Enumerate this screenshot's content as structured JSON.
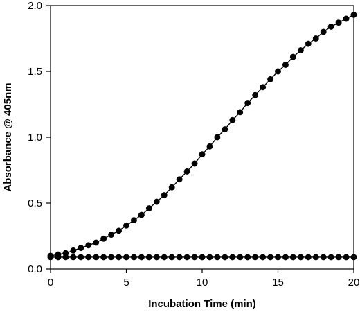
{
  "chart_data": {
    "type": "line",
    "xlabel": "Incubation Time (min)",
    "ylabel": "Absorbance @ 405nm",
    "xlim": [
      0,
      20
    ],
    "ylim": [
      0.0,
      2.0
    ],
    "x_ticks": [
      0,
      5,
      10,
      15,
      20
    ],
    "y_ticks": [
      0.0,
      0.5,
      1.0,
      1.5,
      2.0
    ],
    "x_tick_labels": [
      "0",
      "5",
      "10",
      "15",
      "20"
    ],
    "y_tick_labels": [
      "0.0",
      "0.5",
      "1.0",
      "1.5",
      "2.0"
    ],
    "grid": false,
    "legend": "none",
    "marker": "filled-circle",
    "line_color": "#000000",
    "series": [
      {
        "x": [
          0,
          0.5,
          1,
          1.5,
          2,
          2.5,
          3,
          3.5,
          4,
          4.5,
          5,
          5.5,
          6,
          6.5,
          7,
          7.5,
          8,
          8.5,
          9,
          9.5,
          10,
          10.5,
          11,
          11.5,
          12,
          12.5,
          13,
          13.5,
          14,
          14.5,
          15,
          15.5,
          16,
          16.5,
          17,
          17.5,
          18,
          18.5,
          19,
          19.5,
          20
        ],
        "values": [
          0.1,
          0.11,
          0.12,
          0.14,
          0.16,
          0.18,
          0.2,
          0.23,
          0.26,
          0.29,
          0.33,
          0.37,
          0.41,
          0.46,
          0.51,
          0.56,
          0.62,
          0.68,
          0.74,
          0.8,
          0.87,
          0.93,
          1.0,
          1.06,
          1.13,
          1.19,
          1.26,
          1.32,
          1.38,
          1.44,
          1.5,
          1.55,
          1.61,
          1.66,
          1.71,
          1.75,
          1.8,
          1.84,
          1.87,
          1.9,
          1.93
        ]
      },
      {
        "x": [
          0,
          0.5,
          1,
          1.5,
          2,
          2.5,
          3,
          3.5,
          4,
          4.5,
          5,
          5.5,
          6,
          6.5,
          7,
          7.5,
          8,
          8.5,
          9,
          9.5,
          10,
          10.5,
          11,
          11.5,
          12,
          12.5,
          13,
          13.5,
          14,
          14.5,
          15,
          15.5,
          16,
          16.5,
          17,
          17.5,
          18,
          18.5,
          19,
          19.5,
          20
        ],
        "values": [
          0.09,
          0.09,
          0.09,
          0.09,
          0.09,
          0.09,
          0.09,
          0.09,
          0.09,
          0.09,
          0.09,
          0.09,
          0.09,
          0.09,
          0.09,
          0.09,
          0.09,
          0.09,
          0.09,
          0.09,
          0.09,
          0.09,
          0.09,
          0.09,
          0.09,
          0.09,
          0.09,
          0.09,
          0.09,
          0.09,
          0.09,
          0.09,
          0.09,
          0.09,
          0.09,
          0.09,
          0.09,
          0.09,
          0.09,
          0.09,
          0.09
        ]
      }
    ]
  }
}
